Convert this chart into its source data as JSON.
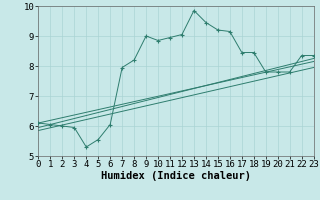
{
  "title": "",
  "xlabel": "Humidex (Indice chaleur)",
  "bg_color": "#c8e8e8",
  "line_color": "#2e7d6e",
  "x_min": 0,
  "x_max": 23,
  "y_min": 5,
  "y_max": 10,
  "main_line_x": [
    0,
    1,
    2,
    3,
    4,
    5,
    6,
    7,
    8,
    9,
    10,
    11,
    12,
    13,
    14,
    15,
    16,
    17,
    18,
    19,
    20,
    21,
    22,
    23
  ],
  "main_line_y": [
    6.1,
    6.05,
    6.0,
    5.95,
    5.3,
    5.55,
    6.05,
    7.95,
    8.2,
    9.0,
    8.85,
    8.95,
    9.05,
    9.85,
    9.45,
    9.2,
    9.15,
    8.45,
    8.45,
    7.8,
    7.8,
    7.8,
    8.35,
    8.35
  ],
  "regression_lines": [
    {
      "x": [
        0,
        23
      ],
      "y": [
        6.1,
        8.15
      ]
    },
    {
      "x": [
        0,
        23
      ],
      "y": [
        5.95,
        8.25
      ]
    },
    {
      "x": [
        0,
        23
      ],
      "y": [
        5.85,
        7.95
      ]
    }
  ],
  "grid_color": "#aad4d4",
  "tick_fontsize": 6.5,
  "xlabel_fontsize": 7.5
}
